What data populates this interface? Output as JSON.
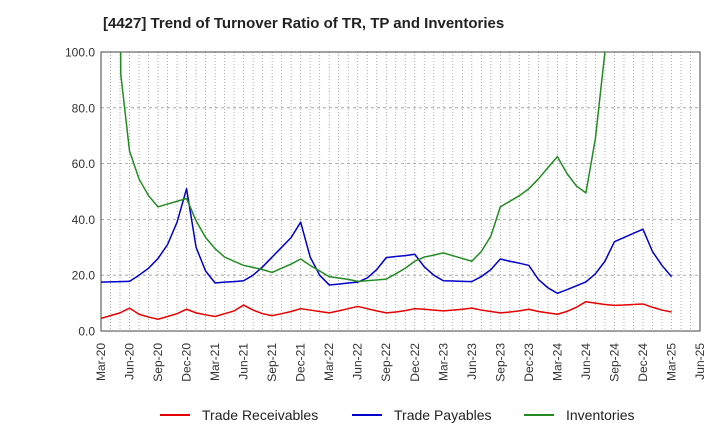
{
  "header": {
    "title": "[4427]  Trend of Turnover Ratio of TR, TP and Inventories"
  },
  "chart_data": {
    "type": "line",
    "title": "[4427]  Trend of Turnover Ratio of TR, TP and Inventories",
    "xlabel": "",
    "ylabel": "",
    "ylim": [
      0,
      100
    ],
    "yticks": [
      "0.0",
      "20.0",
      "40.0",
      "60.0",
      "80.0",
      "100.0"
    ],
    "grid": true,
    "legend_position": "bottom",
    "x_tick_labels": [
      "Mar-20",
      "Jun-20",
      "Sep-20",
      "Dec-20",
      "Mar-21",
      "Jun-21",
      "Sep-21",
      "Dec-21",
      "Mar-22",
      "Jun-22",
      "Sep-22",
      "Dec-22",
      "Mar-23",
      "Jun-23",
      "Sep-23",
      "Dec-23",
      "Mar-24",
      "Jun-24",
      "Sep-24",
      "Dec-24",
      "Mar-25",
      "Jun-25"
    ],
    "x": [
      "Mar-20",
      "Apr-20",
      "May-20",
      "Jun-20",
      "Jul-20",
      "Aug-20",
      "Sep-20",
      "Oct-20",
      "Nov-20",
      "Dec-20",
      "Jan-21",
      "Feb-21",
      "Mar-21",
      "Apr-21",
      "May-21",
      "Jun-21",
      "Jul-21",
      "Aug-21",
      "Sep-21",
      "Oct-21",
      "Nov-21",
      "Dec-21",
      "Jan-22",
      "Feb-22",
      "Mar-22",
      "Apr-22",
      "May-22",
      "Jun-22",
      "Jul-22",
      "Aug-22",
      "Sep-22",
      "Oct-22",
      "Nov-22",
      "Dec-22",
      "Jan-23",
      "Feb-23",
      "Mar-23",
      "Apr-23",
      "May-23",
      "Jun-23",
      "Jul-23",
      "Aug-23",
      "Sep-23",
      "Oct-23",
      "Nov-23",
      "Dec-23",
      "Jan-24",
      "Feb-24",
      "Mar-24",
      "Apr-24",
      "May-24",
      "Jun-24",
      "Jul-24",
      "Aug-24",
      "Sep-24",
      "Oct-24",
      "Nov-24",
      "Dec-24",
      "Jan-25",
      "Feb-25",
      "Mar-25"
    ],
    "series": [
      {
        "name": "Trade Receivables",
        "color": "#e60000",
        "values": [
          4.5,
          5.5,
          6.5,
          8.2,
          6.0,
          5.0,
          4.2,
          5.2,
          6.2,
          7.8,
          6.5,
          5.8,
          5.2,
          6.2,
          7.2,
          9.3,
          7.5,
          6.2,
          5.5,
          6.2,
          7.0,
          8.0,
          7.5,
          7.0,
          6.5,
          7.2,
          8.0,
          8.8,
          8.0,
          7.2,
          6.5,
          6.8,
          7.3,
          8.0,
          7.8,
          7.5,
          7.2,
          7.5,
          7.8,
          8.2,
          7.5,
          7.0,
          6.5,
          6.8,
          7.2,
          7.8,
          7.0,
          6.5,
          6.0,
          7.0,
          8.5,
          10.5,
          10.0,
          9.5,
          9.2,
          9.3,
          9.5,
          9.7,
          8.5,
          7.5,
          6.8
        ]
      },
      {
        "name": "Trade Payables",
        "color": "#0000cc",
        "values": [
          17.5,
          17.6,
          17.7,
          17.8,
          20.0,
          22.5,
          26.0,
          31.0,
          39.0,
          51.0,
          30.0,
          21.5,
          17.2,
          17.5,
          17.7,
          18.0,
          20.0,
          23.0,
          26.5,
          30.0,
          33.5,
          39.0,
          26.5,
          20.0,
          16.5,
          16.8,
          17.2,
          17.5,
          19.0,
          22.0,
          26.3,
          26.7,
          27.0,
          27.5,
          23.0,
          20.0,
          18.0,
          17.9,
          17.8,
          17.7,
          19.5,
          22.0,
          25.8,
          25.0,
          24.3,
          23.5,
          18.5,
          15.5,
          13.5,
          14.8,
          16.2,
          17.6,
          20.5,
          25.0,
          32.0,
          33.5,
          35.0,
          36.5,
          28.5,
          23.5,
          19.5
        ]
      },
      {
        "name": "Inventories",
        "color": "#228b22",
        "values": [
          null,
          null,
          null,
          64.5,
          54.5,
          48.5,
          44.5,
          45.5,
          46.5,
          47.5,
          39.5,
          33.5,
          29.5,
          26.5,
          25.0,
          23.5,
          22.8,
          22.0,
          21.0,
          22.5,
          24.0,
          25.8,
          23.5,
          21.5,
          19.5,
          19.0,
          18.5,
          17.8,
          18.0,
          18.3,
          18.6,
          20.5,
          22.5,
          25.0,
          26.5,
          27.2,
          28.0,
          27.0,
          26.0,
          25.0,
          28.5,
          34.0,
          44.5,
          46.5,
          48.5,
          51.0,
          54.5,
          58.5,
          62.5,
          56.5,
          52.0,
          49.5,
          69.0,
          100.0,
          null,
          null,
          null,
          null,
          null,
          null,
          null
        ]
      }
    ]
  }
}
